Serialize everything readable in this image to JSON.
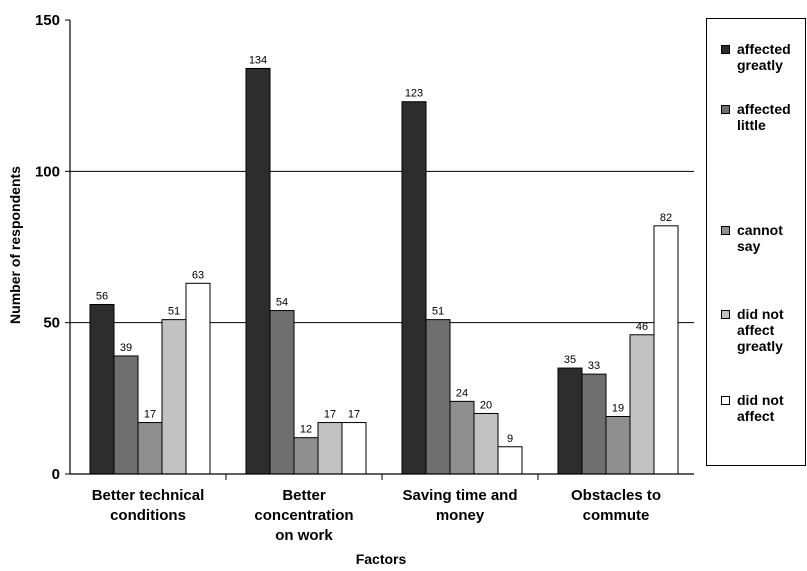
{
  "chart_data": {
    "type": "bar",
    "xlabel": "Factors",
    "ylabel": "Number of respondents",
    "ylim": [
      0,
      150
    ],
    "yticks": [
      "0",
      "50",
      "100",
      "150"
    ],
    "gridlines": [
      50,
      100
    ],
    "categories": [
      [
        "Better technical",
        "conditions"
      ],
      [
        "Better",
        "concentration",
        "on work"
      ],
      [
        "Saving time and",
        "money"
      ],
      [
        "Obstacles to",
        "commute"
      ]
    ],
    "series": [
      {
        "name": "affected greatly",
        "color": "#2d2d2d",
        "values": [
          56,
          134,
          123,
          35
        ]
      },
      {
        "name": "affected little",
        "color": "#6f6f6f",
        "values": [
          39,
          54,
          51,
          33
        ]
      },
      {
        "name": "cannot say",
        "color": "#8f8f8f",
        "values": [
          17,
          12,
          24,
          19
        ]
      },
      {
        "name": "did not affect greatly",
        "color": "#c2c2c2",
        "values": [
          51,
          17,
          20,
          46
        ]
      },
      {
        "name": "did not affect",
        "color": "#ffffff",
        "values": [
          63,
          17,
          9,
          82
        ]
      }
    ],
    "legend": "right",
    "legend_labels": [
      [
        "affected",
        "greatly"
      ],
      [
        "affected",
        "little"
      ],
      [
        "cannot",
        "say"
      ],
      [
        "did not",
        "affect",
        "greatly"
      ],
      [
        "did not",
        "affect"
      ]
    ]
  }
}
